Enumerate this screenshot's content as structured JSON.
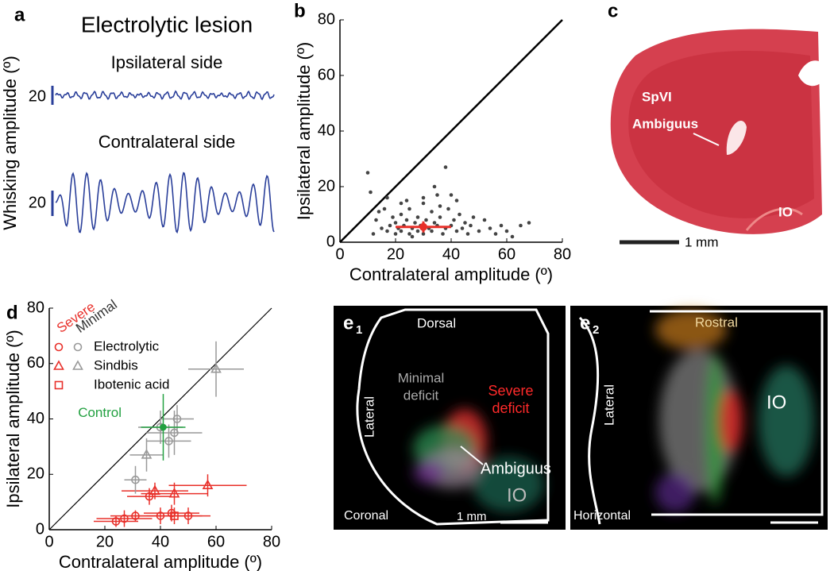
{
  "panels": {
    "a": "a",
    "b": "b",
    "c": "c",
    "d": "d",
    "e1": "e",
    "e1_sub": "1",
    "e2": "e",
    "e2_sub": "2"
  },
  "panel_a": {
    "title": "Electrolytic lesion",
    "top_label": "Ipsilateral side",
    "bottom_label": "Contralateral side",
    "scale_top": "20",
    "scale_bottom": "20",
    "ylabel": "Whisking amplitude (º)"
  },
  "panel_c": {
    "region1": "SpVI",
    "region2": "Ambiguus",
    "region3": "IO",
    "scale": "1 mm"
  },
  "panel_e1": {
    "top": "Dorsal",
    "side": "Lateral",
    "minimal1": "Minimal",
    "minimal2": "deficit",
    "severe1": "Severe",
    "severe2": "deficit",
    "pointer": "Ambiguus",
    "io": "IO",
    "plane": "Coronal",
    "scale": "1 mm"
  },
  "panel_e2": {
    "top": "Rostral",
    "side": "Lateral",
    "io": "IO",
    "plane": "Horizontal"
  },
  "chart_data": [
    {
      "type": "scatter",
      "xlabel": "Contralateral amplitude (º)",
      "ylabel": "Ipsilateral amplitude (º)",
      "xlim": [
        0,
        80
      ],
      "ylim": [
        0,
        80
      ],
      "xticks": [
        0,
        20,
        40,
        60,
        80
      ],
      "yticks": [
        0,
        20,
        40,
        60,
        80
      ],
      "diagonal": true,
      "series": [
        {
          "color": "#444444",
          "x": [
            10,
            12,
            13,
            15,
            16,
            17,
            18,
            19,
            20,
            20,
            21,
            22,
            22,
            23,
            24,
            25,
            25,
            26,
            27,
            28,
            28,
            29,
            30,
            30,
            31,
            32,
            33,
            33,
            34,
            35,
            35,
            36,
            37,
            38,
            38,
            39,
            40,
            41,
            42,
            43,
            44,
            45,
            46,
            47,
            48,
            50,
            52,
            54,
            56,
            58,
            60,
            62,
            65,
            68,
            11,
            17,
            24,
            34,
            14,
            36,
            22,
            30,
            42,
            26,
            40
          ],
          "values": [
            25,
            3,
            8,
            5,
            12,
            4,
            6,
            9,
            3,
            7,
            5,
            10,
            4,
            6,
            8,
            3,
            12,
            5,
            7,
            4,
            9,
            6,
            3,
            14,
            8,
            5,
            11,
            4,
            7,
            17,
            6,
            9,
            3,
            27,
            5,
            12,
            6,
            8,
            4,
            10,
            5,
            7,
            3,
            6,
            9,
            4,
            8,
            5,
            3,
            6,
            4,
            2,
            6,
            7,
            18,
            16,
            15,
            20,
            11,
            13,
            14,
            16,
            15,
            2,
            17
          ]
        }
      ],
      "mean": {
        "color": "#e8302a",
        "x": 30,
        "value": 5.5,
        "xerr": 10,
        "yerr": 2
      }
    },
    {
      "type": "errorscatter",
      "xlabel": "Contralateral amplitude (º)",
      "ylabel": "Ipsilateral amplitude (º)",
      "xlim": [
        0,
        80
      ],
      "ylim": [
        0,
        80
      ],
      "xticks": [
        0,
        20,
        40,
        60,
        80
      ],
      "yticks": [
        0,
        20,
        40,
        60,
        80
      ],
      "diagonal": true,
      "groups": [
        {
          "name": "Severe",
          "color": "#e8302a"
        },
        {
          "name": "Minimal",
          "color": "#999999"
        }
      ],
      "series": [
        {
          "name": "Electrolytic",
          "color": "#e8302a",
          "marker": "circle",
          "x": [
            24,
            27,
            31,
            40,
            44,
            50,
            36
          ],
          "values": [
            3,
            4,
            5,
            5,
            6,
            5,
            12
          ],
          "xerr": [
            8,
            10,
            9,
            12,
            10,
            8,
            8
          ],
          "yerr": [
            2,
            3,
            2,
            3,
            3,
            3,
            3
          ]
        },
        {
          "name": "Sindbis",
          "color": "#e8302a",
          "marker": "triangle",
          "x": [
            38,
            45,
            57
          ],
          "values": [
            14,
            13,
            16
          ],
          "xerr": [
            12,
            12,
            14
          ],
          "yerr": [
            3,
            4,
            4
          ]
        },
        {
          "name": "Ibotenic acid",
          "color": "#e8302a",
          "marker": "square",
          "x": [
            45
          ],
          "values": [
            5
          ],
          "xerr": [
            10
          ],
          "yerr": [
            3
          ]
        },
        {
          "name": "Electrolytic",
          "color": "#999999",
          "marker": "circle",
          "x": [
            31,
            43,
            45,
            46,
            40
          ],
          "values": [
            18,
            32,
            35,
            40,
            37
          ],
          "xerr": [
            4,
            8,
            10,
            6,
            8
          ],
          "yerr": [
            5,
            6,
            8,
            5,
            6
          ]
        },
        {
          "name": "Sindbis",
          "color": "#999999",
          "marker": "triangle",
          "x": [
            35,
            60
          ],
          "values": [
            27,
            58
          ],
          "xerr": [
            6,
            10
          ],
          "yerr": [
            6,
            10
          ]
        },
        {
          "name": "Control",
          "color": "#22a040",
          "marker": "dot",
          "x": [
            41
          ],
          "values": [
            37
          ],
          "xerr": [
            8
          ],
          "yerr": [
            12
          ]
        }
      ]
    }
  ]
}
